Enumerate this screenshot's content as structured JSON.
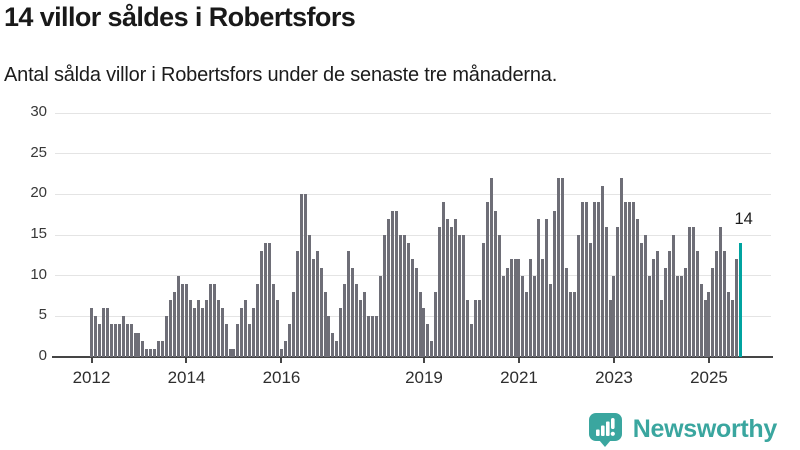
{
  "header": {
    "title": "14 villor såldes i Robertsfors",
    "subtitle": "Antal sålda villor i Robertsfors under de senaste tre månaderna."
  },
  "chart_data": {
    "type": "bar",
    "title": "14 villor såldes i Robertsfors",
    "xlabel": "",
    "ylabel": "",
    "start_month": "2012-01",
    "end_month": "2025-09",
    "ylim": [
      0,
      30
    ],
    "y_ticks": [
      0,
      5,
      10,
      15,
      20,
      25,
      30
    ],
    "x_ticks": [
      {
        "label": "2012",
        "month_offset": 0
      },
      {
        "label": "2014",
        "month_offset": 24
      },
      {
        "label": "2016",
        "month_offset": 48
      },
      {
        "label": "2019",
        "month_offset": 84
      },
      {
        "label": "2021",
        "month_offset": 108
      },
      {
        "label": "2023",
        "month_offset": 132
      },
      {
        "label": "2025",
        "month_offset": 156
      }
    ],
    "grid": "horizontal",
    "values": [
      6,
      5,
      4,
      6,
      6,
      4,
      4,
      4,
      5,
      4,
      4,
      3,
      3,
      2,
      1,
      1,
      1,
      2,
      2,
      5,
      7,
      8,
      10,
      9,
      9,
      7,
      6,
      7,
      6,
      7,
      9,
      9,
      7,
      6,
      4,
      1,
      1,
      4,
      6,
      7,
      4,
      6,
      9,
      13,
      14,
      14,
      9,
      7,
      1,
      2,
      4,
      8,
      13,
      20,
      20,
      15,
      12,
      13,
      11,
      8,
      5,
      3,
      2,
      6,
      9,
      13,
      11,
      9,
      7,
      8,
      5,
      5,
      5,
      10,
      15,
      17,
      18,
      18,
      15,
      15,
      14,
      12,
      11,
      8,
      6,
      4,
      2,
      8,
      16,
      19,
      17,
      16,
      17,
      15,
      15,
      7,
      4,
      7,
      7,
      14,
      19,
      22,
      18,
      15,
      10,
      11,
      12,
      12,
      12,
      10,
      8,
      12,
      10,
      17,
      12,
      17,
      9,
      18,
      22,
      22,
      11,
      8,
      8,
      15,
      19,
      19,
      14,
      19,
      19,
      21,
      16,
      7,
      10,
      16,
      22,
      19,
      19,
      19,
      17,
      14,
      15,
      10,
      12,
      13,
      7,
      11,
      13,
      15,
      10,
      10,
      11,
      16,
      16,
      13,
      9,
      7,
      8,
      11,
      13,
      16,
      13,
      8,
      7,
      12,
      14
    ],
    "highlight_last": true,
    "last_value_label": "14",
    "colors": {
      "bar": "#6e6e77",
      "highlight": "#00a3a0",
      "grid": "#e4e4e4",
      "axis": "#454545"
    }
  },
  "footer": {
    "brand": "Newsworthy",
    "brand_color": "#3aa69f"
  }
}
